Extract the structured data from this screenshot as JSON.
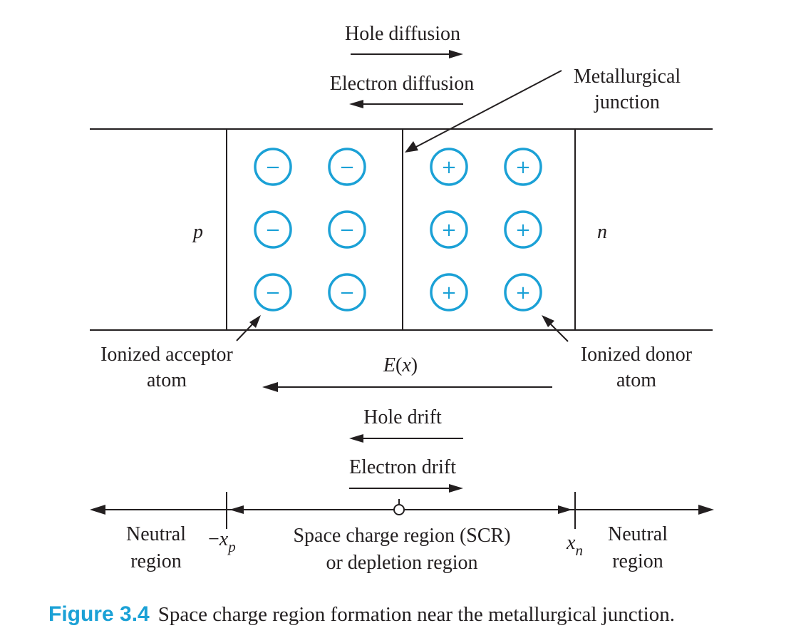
{
  "labels": {
    "hole_diffusion": "Hole diffusion",
    "electron_diffusion": "Electron diffusion",
    "metallurgical_line1": "Metallurgical",
    "metallurgical_line2": "junction",
    "p": "p",
    "n": "n",
    "acceptor_line1": "Ionized acceptor",
    "acceptor_line2": "atom",
    "donor_line1": "Ionized donor",
    "donor_line2": "atom",
    "efield_E": "E",
    "efield_open": "(",
    "efield_x": "x",
    "efield_close": ")",
    "hole_drift": "Hole drift",
    "electron_drift": "Electron drift",
    "neutral_left_line1": "Neutral",
    "neutral_left_line2": "region",
    "minus_xp_minus": "−",
    "minus_xp_x": "x",
    "minus_xp_sub": "p",
    "scr_line1": "Space charge region (SCR)",
    "scr_line2": "or depletion region",
    "xn_x": "x",
    "xn_sub": "n",
    "neutral_right_line1": "Neutral",
    "neutral_right_line2": "region"
  },
  "ions": {
    "acceptor_sign": "−",
    "donor_sign": "+",
    "color": "#1ba1d6"
  },
  "caption": {
    "number": "Figure 3.4",
    "text": "Space charge region formation near the metallurgical junction."
  }
}
